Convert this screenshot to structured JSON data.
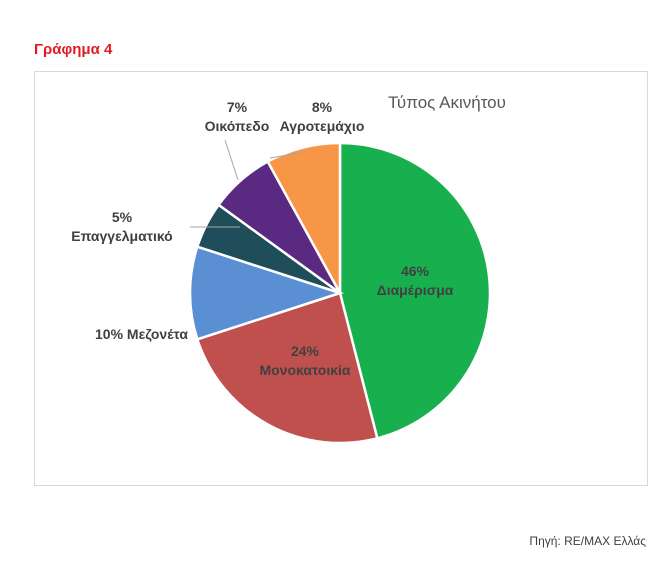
{
  "figure_label": "Γράφημα 4",
  "source": "Πηγή: RE/MAX Ελλάς",
  "chart_data": {
    "type": "pie",
    "title": "Τύπος Ακινήτου",
    "slices": [
      {
        "name": "Διαμέρισμα",
        "value": 46,
        "label": "46%",
        "color": "#18b04f"
      },
      {
        "name": "Μονοκατοικία",
        "value": 24,
        "label": "24%",
        "color": "#c0504d"
      },
      {
        "name": "Μεζονέτα",
        "value": 10,
        "label": "10%",
        "color": "#5b8fd4"
      },
      {
        "name": "Επαγγελματικό",
        "value": 5,
        "label": "5%",
        "color": "#1f4e5a"
      },
      {
        "name": "Οικόπεδο",
        "value": 7,
        "label": "7%",
        "color": "#5a2a82"
      },
      {
        "name": "Αγροτεμάχιο",
        "value": 8,
        "label": "8%",
        "color": "#f79646"
      }
    ]
  }
}
